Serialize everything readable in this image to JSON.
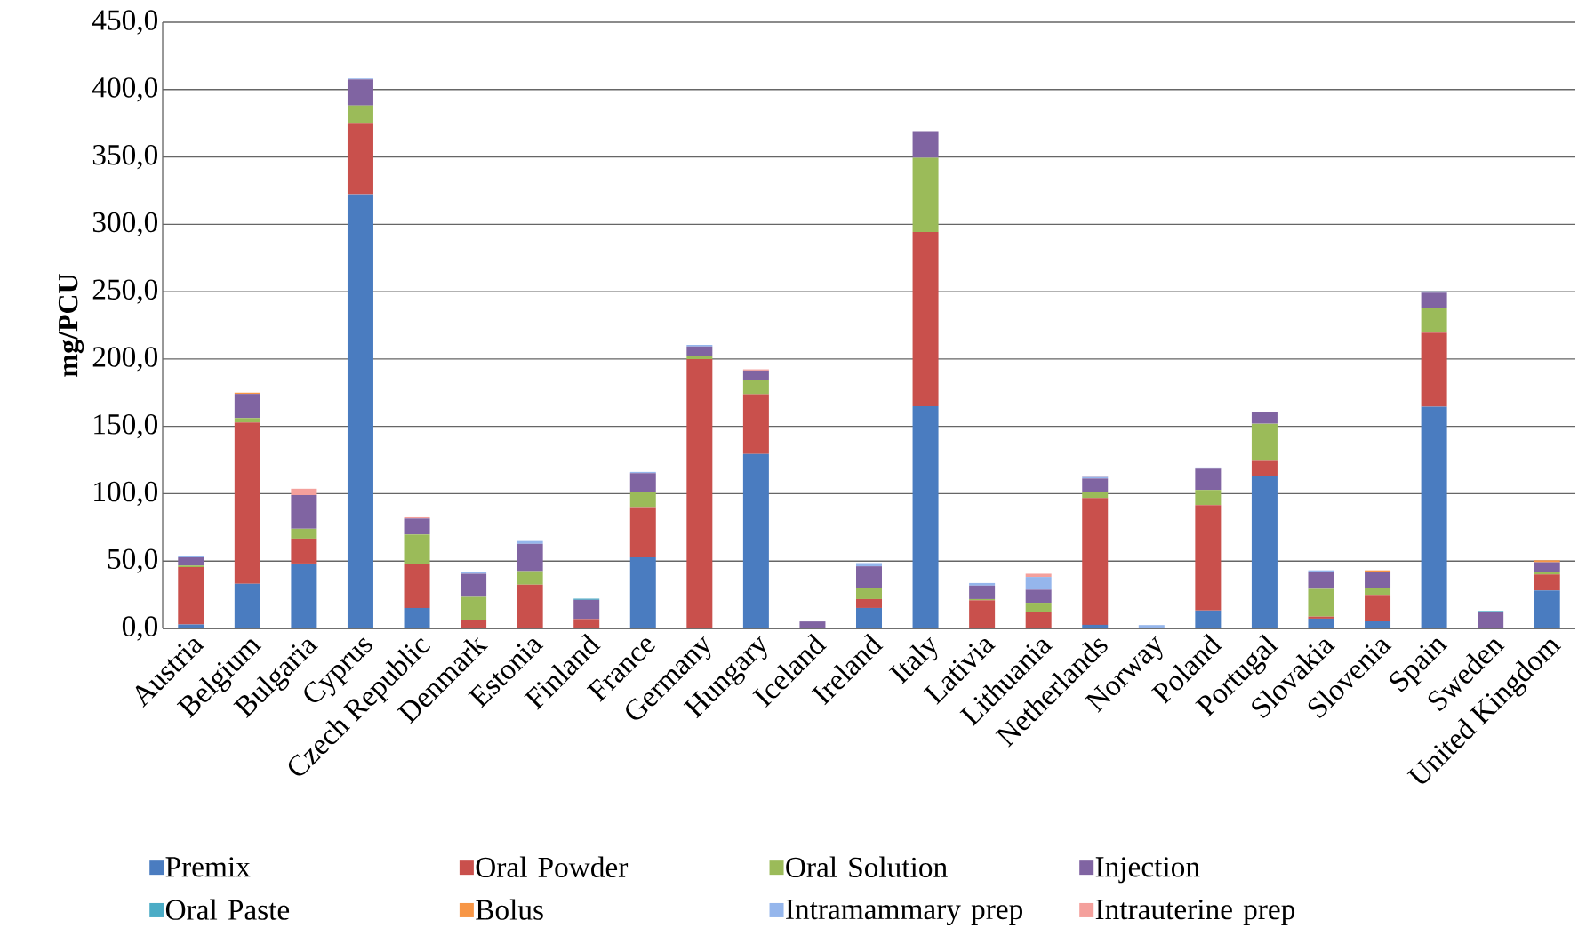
{
  "chart_data": {
    "type": "bar",
    "stacked": true,
    "ylabel": "mg/PCU",
    "categories": [
      "Austria",
      "Belgium",
      "Bulgaria",
      "Cyprus",
      "Czech Republic",
      "Denmark",
      "Estonia",
      "Finland",
      "France",
      "Germany",
      "Hungary",
      "Iceland",
      "Ireland",
      "Italy",
      "Lativia",
      "Lithuania",
      "Netherlands",
      "Norway",
      "Poland",
      "Portugal",
      "Slovakia",
      "Slovenia",
      "Spain",
      "Sweden",
      "United Kingdom"
    ],
    "series": [
      {
        "name": "Premix",
        "color": "#4a7cc0",
        "values": [
          3.0,
          33.1,
          48.2,
          322.4,
          15.2,
          0.6,
          0,
          0.5,
          52.8,
          0,
          129.5,
          0,
          15.2,
          165.0,
          0,
          0,
          2.7,
          0,
          13.3,
          113.1,
          7.3,
          5.2,
          164.7,
          0,
          28.2
        ]
      },
      {
        "name": "Oral Powder",
        "color": "#c9504c",
        "values": [
          42.5,
          119.8,
          18.5,
          52.8,
          32.4,
          5.5,
          32.5,
          6.5,
          37.3,
          199.9,
          44.3,
          0,
          6.6,
          129.2,
          20.9,
          12.1,
          94.1,
          0,
          78.3,
          11.3,
          1.5,
          19.7,
          54.9,
          0,
          11.8
        ]
      },
      {
        "name": "Oral Solution",
        "color": "#9bbb59",
        "values": [
          1.2,
          3.3,
          7.3,
          13.0,
          22.2,
          17.3,
          10.0,
          0,
          11.2,
          2.4,
          10.3,
          0,
          8.5,
          55.2,
          0.9,
          7.0,
          4.8,
          0,
          11.2,
          27.6,
          20.6,
          5.1,
          18.5,
          0,
          2.2
        ]
      },
      {
        "name": "Injection",
        "color": "#8064a2",
        "values": [
          6.1,
          17.9,
          24.9,
          19.4,
          11.8,
          17.2,
          20.3,
          14.2,
          14.0,
          7.0,
          7.3,
          5.2,
          15.8,
          19.7,
          10.0,
          9.7,
          9.7,
          0,
          15.8,
          8.4,
          12.8,
          12.2,
          11.2,
          11.8,
          6.9
        ]
      },
      {
        "name": "Oral Paste",
        "color": "#4bacc6",
        "values": [
          0,
          0,
          0,
          0,
          0,
          0,
          0,
          0.9,
          0,
          0,
          0,
          0,
          0,
          0,
          0,
          0,
          0,
          0,
          0,
          0,
          0,
          0,
          0,
          1.2,
          0
        ]
      },
      {
        "name": "Bolus",
        "color": "#f79646",
        "values": [
          0,
          0.9,
          0,
          0,
          0,
          0,
          0,
          0,
          0,
          0,
          0,
          0,
          0,
          0,
          0,
          0,
          0,
          0,
          0,
          0,
          0,
          0.9,
          0,
          0,
          1.5
        ]
      },
      {
        "name": "Intramammary prep",
        "color": "#95b6ec",
        "values": [
          0.9,
          0,
          0,
          0.7,
          0,
          1.0,
          2.1,
          0,
          0.9,
          1.2,
          0,
          0,
          2.4,
          0,
          1.9,
          9.4,
          1.2,
          2.5,
          0.9,
          0,
          0.9,
          0,
          0.9,
          0,
          0
        ]
      },
      {
        "name": "Intrauterine prep",
        "color": "#f4a09c",
        "values": [
          0,
          0,
          4.8,
          0,
          0.9,
          0,
          0,
          0,
          0,
          0,
          0.9,
          0,
          0,
          null,
          0,
          2.4,
          0.9,
          0,
          0,
          0,
          0,
          0,
          0,
          0,
          0
        ]
      }
    ],
    "ylim": [
      0,
      450
    ],
    "yticks": [
      {
        "value": 0,
        "label": "0,0"
      },
      {
        "value": 50,
        "label": "50,0"
      },
      {
        "value": 100,
        "label": "100,0"
      },
      {
        "value": 150,
        "label": "150,0"
      },
      {
        "value": 200,
        "label": "200,0"
      },
      {
        "value": 250,
        "label": "250,0"
      },
      {
        "value": 300,
        "label": "300,0"
      },
      {
        "value": 350,
        "label": "350,0"
      },
      {
        "value": 400,
        "label": "400,0"
      },
      {
        "value": 450,
        "label": "450,0"
      }
    ],
    "grid": "y",
    "legend": "bottom"
  }
}
